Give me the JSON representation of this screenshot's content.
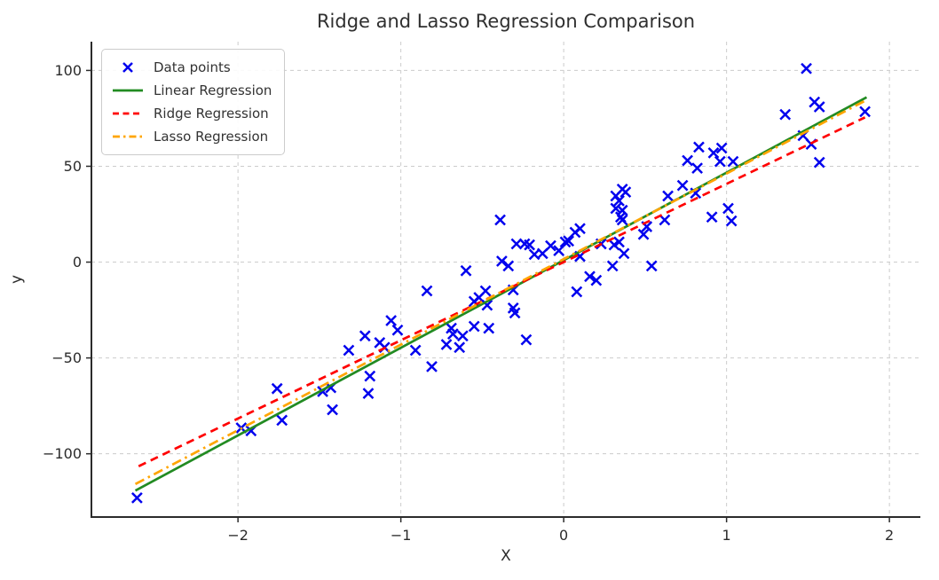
{
  "chart_data": {
    "type": "scatter",
    "title": "Ridge and Lasso Regression Comparison",
    "xlabel": "X",
    "ylabel": "y",
    "xlim": [
      -2.9,
      2.19
    ],
    "ylim": [
      -133,
      115
    ],
    "xticks": [
      -2,
      -1,
      0,
      1,
      2
    ],
    "yticks": [
      -100,
      -50,
      0,
      50,
      100
    ],
    "grid": true,
    "legend_position": "upper-left",
    "grid_color": "#cccccc",
    "spine_color": "#2b2b2b",
    "scatter": {
      "name": "Data points",
      "color": "#0000ee",
      "marker": "x",
      "points": [
        [
          -2.62,
          -123
        ],
        [
          -1.98,
          -86.5
        ],
        [
          -1.92,
          -88
        ],
        [
          -1.76,
          -66
        ],
        [
          -1.73,
          -82.5
        ],
        [
          -1.48,
          -67.5
        ],
        [
          -1.43,
          -65.5
        ],
        [
          -1.42,
          -77
        ],
        [
          -1.32,
          -46
        ],
        [
          -1.22,
          -38.5
        ],
        [
          -1.2,
          -68.5
        ],
        [
          -1.19,
          -59.5
        ],
        [
          -1.13,
          -42
        ],
        [
          -1.1,
          -44.5
        ],
        [
          -1.06,
          -30.5
        ],
        [
          -1.02,
          -35.5
        ],
        [
          -0.91,
          -46
        ],
        [
          -0.84,
          -15
        ],
        [
          -0.81,
          -54.5
        ],
        [
          -0.72,
          -43
        ],
        [
          -0.69,
          -34.5
        ],
        [
          -0.68,
          -37.5
        ],
        [
          -0.64,
          -44.5
        ],
        [
          -0.62,
          -38.5
        ],
        [
          -0.6,
          -4.5
        ],
        [
          -0.55,
          -20.5
        ],
        [
          -0.55,
          -33.5
        ],
        [
          -0.52,
          -18.5
        ],
        [
          -0.48,
          -15
        ],
        [
          -0.47,
          -22.5
        ],
        [
          -0.46,
          -34.5
        ],
        [
          -0.39,
          22
        ],
        [
          -0.38,
          0.5
        ],
        [
          -0.34,
          -2
        ],
        [
          -0.31,
          -14.5
        ],
        [
          -0.31,
          -24
        ],
        [
          -0.3,
          -26.5
        ],
        [
          -0.29,
          9.5
        ],
        [
          -0.24,
          9.5
        ],
        [
          -0.23,
          -40.5
        ],
        [
          -0.21,
          9
        ],
        [
          -0.18,
          4
        ],
        [
          -0.13,
          4.5
        ],
        [
          -0.08,
          8.5
        ],
        [
          -0.03,
          6
        ],
        [
          0.01,
          10.5
        ],
        [
          0.03,
          11
        ],
        [
          0.07,
          15.5
        ],
        [
          0.1,
          17.5
        ],
        [
          0.1,
          3
        ],
        [
          0.08,
          -15.5
        ],
        [
          0.16,
          -7.5
        ],
        [
          0.2,
          -9.5
        ],
        [
          0.23,
          9.5
        ],
        [
          0.31,
          9
        ],
        [
          0.34,
          10.5
        ],
        [
          0.37,
          4.5
        ],
        [
          0.3,
          -2
        ],
        [
          0.54,
          -2
        ],
        [
          0.49,
          14.5
        ],
        [
          0.51,
          18.5
        ],
        [
          0.32,
          34.5
        ],
        [
          0.34,
          32
        ],
        [
          0.32,
          28
        ],
        [
          0.36,
          27
        ],
        [
          0.35,
          23.5
        ],
        [
          0.36,
          22
        ],
        [
          0.36,
          38
        ],
        [
          0.38,
          36.5
        ],
        [
          0.62,
          22
        ],
        [
          0.64,
          34.5
        ],
        [
          0.73,
          40
        ],
        [
          0.81,
          36
        ],
        [
          0.76,
          53
        ],
        [
          0.82,
          49
        ],
        [
          0.83,
          60
        ],
        [
          0.91,
          23.5
        ],
        [
          0.92,
          57
        ],
        [
          0.96,
          52.5
        ],
        [
          0.97,
          59.5
        ],
        [
          1.01,
          28
        ],
        [
          1.03,
          21.5
        ],
        [
          1.04,
          52.5
        ],
        [
          1.36,
          77
        ],
        [
          1.47,
          66
        ],
        [
          1.49,
          101
        ],
        [
          1.52,
          61.5
        ],
        [
          1.54,
          83.5
        ],
        [
          1.57,
          81
        ],
        [
          1.57,
          52
        ],
        [
          1.85,
          78.5
        ]
      ]
    },
    "lines": [
      {
        "name": "Linear Regression",
        "color": "#228B22",
        "style": "solid",
        "from": [
          -2.63,
          -119.2
        ],
        "to": [
          1.86,
          86.0
        ]
      },
      {
        "name": "Ridge Regression",
        "color": "#ff0000",
        "style": "dashed",
        "from": [
          -2.61,
          -106.5
        ],
        "to": [
          1.85,
          75.5
        ]
      },
      {
        "name": "Lasso Regression",
        "color": "#FFA500",
        "style": "dashdot",
        "from": [
          -2.63,
          -115.8
        ],
        "to": [
          1.86,
          84.6
        ]
      }
    ]
  }
}
